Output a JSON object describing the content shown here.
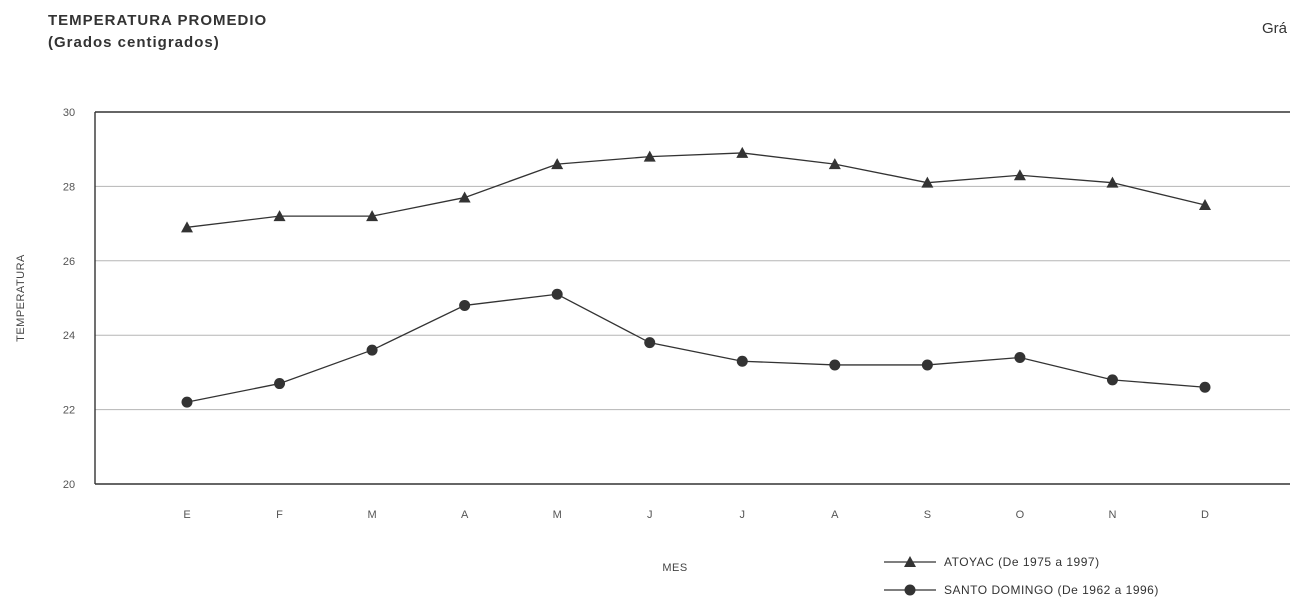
{
  "header": {
    "title": "TEMPERATURA PROMEDIO",
    "subtitle": "(Grados centigrados)",
    "page_tag": "Grá"
  },
  "chart_data": {
    "type": "line",
    "title": "TEMPERATURA PROMEDIO",
    "subtitle": "(Grados centigrados)",
    "xlabel": "MES",
    "ylabel": "TEMPERATURA",
    "categories": [
      "E",
      "F",
      "M",
      "A",
      "M",
      "J",
      "J",
      "A",
      "S",
      "O",
      "N",
      "D"
    ],
    "ylim": [
      20,
      30
    ],
    "yticks": [
      20,
      22,
      24,
      26,
      28,
      30
    ],
    "ytick_labels": [
      "20",
      "22",
      "24",
      "26",
      "28",
      "30"
    ],
    "grid": true,
    "legend_position": "bottom-right",
    "series": [
      {
        "name": "ATOYAC (De 1975 a 1997)",
        "marker": "triangle",
        "color": "#333333",
        "values": [
          26.9,
          27.2,
          27.2,
          27.7,
          28.6,
          28.8,
          28.9,
          28.6,
          28.1,
          28.3,
          28.1,
          27.5
        ]
      },
      {
        "name": "SANTO DOMINGO (De 1962 a 1996)",
        "marker": "circle",
        "color": "#333333",
        "values": [
          22.2,
          22.7,
          23.6,
          24.8,
          25.1,
          23.8,
          23.3,
          23.2,
          23.2,
          23.4,
          22.8,
          22.6
        ]
      }
    ]
  }
}
